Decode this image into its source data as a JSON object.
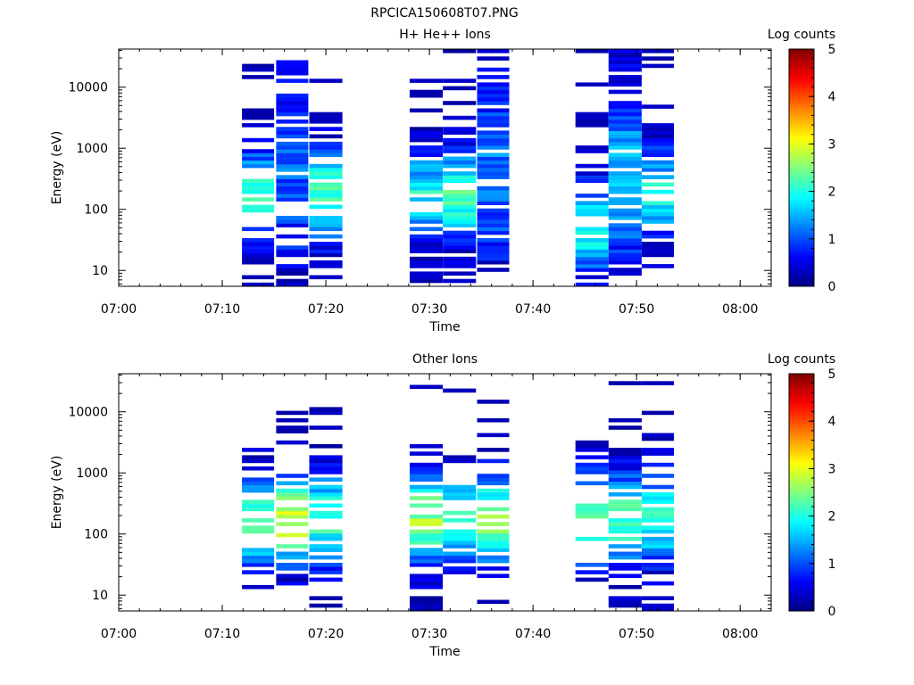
{
  "page_title": "RPCICA150608T07.PNG",
  "chart_data": [
    {
      "type": "heatmap",
      "title": "H+ He++ Ions",
      "xlabel": "Time",
      "ylabel": "Energy (eV)",
      "x_ticks": [
        "07:00",
        "07:10",
        "07:20",
        "07:30",
        "07:40",
        "07:50",
        "08:00"
      ],
      "x_range_minutes": [
        0,
        63
      ],
      "y_scale": "log",
      "y_range": [
        5.5,
        42000
      ],
      "y_ticks": [
        10,
        100,
        1000,
        10000
      ],
      "y_tick_labels": [
        "10",
        "100",
        "1000",
        "10000"
      ],
      "colorbar": {
        "label": "Log counts",
        "range": [
          0,
          5
        ],
        "ticks": [
          "0",
          "1",
          "2",
          "3",
          "4",
          "5"
        ]
      },
      "grid": false,
      "columns": [
        {
          "t0": 11.9,
          "t1": 15.0,
          "profile": "mid",
          "peak": 2.1,
          "seed": 11,
          "fill": 0.65
        },
        {
          "t0": 15.2,
          "t1": 18.3,
          "profile": "flat",
          "peak": 1.1,
          "seed": 12,
          "fill": 0.7
        },
        {
          "t0": 18.4,
          "t1": 21.6,
          "profile": "mid",
          "peak": 2.3,
          "seed": 13,
          "fill": 0.75
        },
        {
          "t0": 28.1,
          "t1": 31.3,
          "profile": "mid",
          "peak": 1.9,
          "seed": 14,
          "fill": 0.85
        },
        {
          "t0": 31.3,
          "t1": 34.5,
          "profile": "mid",
          "peak": 2.2,
          "seed": 15,
          "fill": 0.8
        },
        {
          "t0": 34.6,
          "t1": 37.7,
          "profile": "flat",
          "peak": 1.2,
          "seed": 16,
          "fill": 0.8
        },
        {
          "t0": 44.1,
          "t1": 47.3,
          "profile": "low",
          "peak": 2.0,
          "seed": 17,
          "fill": 0.6
        },
        {
          "t0": 47.3,
          "t1": 50.5,
          "profile": "flat",
          "peak": 1.5,
          "seed": 18,
          "fill": 0.85
        },
        {
          "t0": 50.5,
          "t1": 53.6,
          "profile": "mid",
          "peak": 1.9,
          "seed": 19,
          "fill": 0.7
        }
      ]
    },
    {
      "type": "heatmap",
      "title": "Other Ions",
      "xlabel": "Time",
      "ylabel": "Energy (eV)",
      "x_ticks": [
        "07:00",
        "07:10",
        "07:20",
        "07:30",
        "07:40",
        "07:50",
        "08:00"
      ],
      "x_range_minutes": [
        0,
        63
      ],
      "y_scale": "log",
      "y_range": [
        5.5,
        42000
      ],
      "y_ticks": [
        10,
        100,
        1000,
        10000
      ],
      "y_tick_labels": [
        "10",
        "100",
        "1000",
        "10000"
      ],
      "colorbar": {
        "label": "Log counts",
        "range": [
          0,
          5
        ],
        "ticks": [
          "0",
          "1",
          "2",
          "3",
          "4",
          "5"
        ]
      },
      "grid": false,
      "columns": [
        {
          "t0": 11.9,
          "t1": 15.0,
          "profile": "mid",
          "peak": 2.5,
          "seed": 21,
          "fill": 0.55
        },
        {
          "t0": 15.2,
          "t1": 18.3,
          "profile": "mid",
          "peak": 2.9,
          "seed": 22,
          "fill": 0.55
        },
        {
          "t0": 18.4,
          "t1": 21.6,
          "profile": "mid",
          "peak": 2.2,
          "seed": 23,
          "fill": 0.6
        },
        {
          "t0": 28.1,
          "t1": 31.3,
          "profile": "mid",
          "peak": 2.6,
          "seed": 24,
          "fill": 0.7
        },
        {
          "t0": 31.3,
          "t1": 34.5,
          "profile": "mid",
          "peak": 2.3,
          "seed": 25,
          "fill": 0.6
        },
        {
          "t0": 34.6,
          "t1": 37.7,
          "profile": "mid",
          "peak": 2.5,
          "seed": 26,
          "fill": 0.6
        },
        {
          "t0": 44.1,
          "t1": 47.3,
          "profile": "mid",
          "peak": 2.2,
          "seed": 27,
          "fill": 0.5
        },
        {
          "t0": 47.3,
          "t1": 50.5,
          "profile": "mid",
          "peak": 2.3,
          "seed": 28,
          "fill": 0.7
        },
        {
          "t0": 50.5,
          "t1": 53.6,
          "profile": "mid",
          "peak": 2.1,
          "seed": 29,
          "fill": 0.65
        }
      ]
    }
  ]
}
